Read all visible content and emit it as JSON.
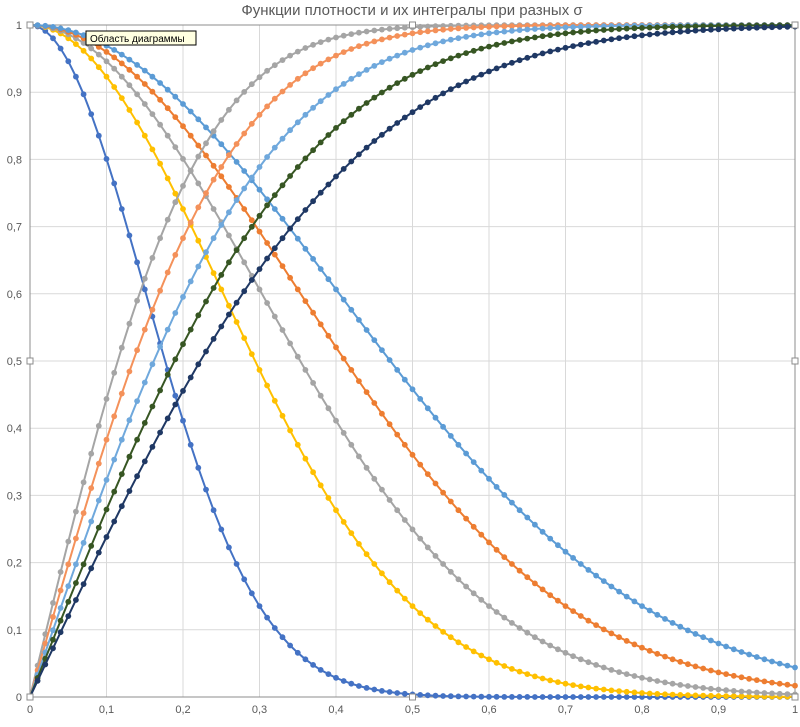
{
  "chart_data": {
    "type": "line",
    "title": "Функции плотности и их интегралы при разных σ",
    "xlabel": "",
    "ylabel": "",
    "xlim": [
      0,
      1
    ],
    "ylim": [
      0,
      1
    ],
    "x_ticks": [
      "0",
      "0,1",
      "0,2",
      "0,3",
      "0,4",
      "0,5",
      "0,6",
      "0,7",
      "0,8",
      "0,9",
      "1"
    ],
    "y_ticks": [
      "0",
      "0,1",
      "0,2",
      "0,3",
      "0,4",
      "0,5",
      "0,6",
      "0,7",
      "0,8",
      "0,9",
      "1"
    ],
    "grid": true,
    "legend": "none",
    "x_step": 0.01,
    "series": [
      {
        "kind": "density",
        "sigma": 0.15,
        "color": "#4472C4"
      },
      {
        "kind": "density",
        "sigma": 0.25,
        "color": "#FFC000"
      },
      {
        "kind": "density",
        "sigma": 0.3,
        "color": "#A5A5A5"
      },
      {
        "kind": "density",
        "sigma": 0.35,
        "color": "#ED7D31"
      },
      {
        "kind": "density",
        "sigma": 0.4,
        "color": "#5B9BD5"
      },
      {
        "kind": "integral",
        "sigma": 0.17,
        "color": "#A5A5A5"
      },
      {
        "kind": "integral",
        "sigma": 0.2,
        "color": "#F4915A"
      },
      {
        "kind": "integral",
        "sigma": 0.24,
        "color": "#6FA8DC"
      },
      {
        "kind": "integral",
        "sigma": 0.28,
        "color": "#375623"
      },
      {
        "kind": "integral",
        "sigma": 0.33,
        "color": "#1F3864"
      }
    ]
  },
  "tooltip": {
    "label": "Область диаграммы"
  }
}
